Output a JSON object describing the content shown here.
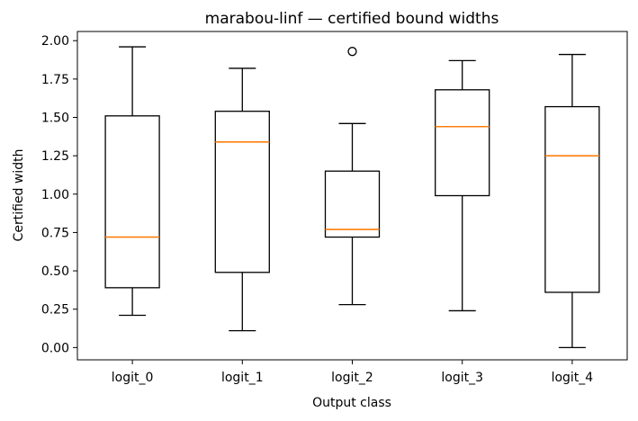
{
  "chart_data": {
    "type": "box",
    "title": "marabou-linf — certified bound widths",
    "xlabel": "Output class",
    "ylabel": "Certified width",
    "ylim": [
      -0.08,
      2.06
    ],
    "yticks": [
      0.0,
      0.25,
      0.5,
      0.75,
      1.0,
      1.25,
      1.5,
      1.75,
      2.0
    ],
    "ytick_labels": [
      "0.00",
      "0.25",
      "0.50",
      "0.75",
      "1.00",
      "1.25",
      "1.50",
      "1.75",
      "2.00"
    ],
    "grid": false,
    "colors": {
      "box": "#000000",
      "median": "#ff7f0e",
      "flier": "#000000"
    },
    "categories": [
      "logit_0",
      "logit_1",
      "logit_2",
      "logit_3",
      "logit_4"
    ],
    "boxes": [
      {
        "label": "logit_0",
        "whisker_low": 0.21,
        "q1": 0.39,
        "median": 0.72,
        "q3": 1.51,
        "whisker_high": 1.96,
        "fliers": []
      },
      {
        "label": "logit_1",
        "whisker_low": 0.11,
        "q1": 0.49,
        "median": 1.34,
        "q3": 1.54,
        "whisker_high": 1.82,
        "fliers": []
      },
      {
        "label": "logit_2",
        "whisker_low": 0.28,
        "q1": 0.72,
        "median": 0.77,
        "q3": 1.15,
        "whisker_high": 1.46,
        "fliers": [
          1.93
        ]
      },
      {
        "label": "logit_3",
        "whisker_low": 0.24,
        "q1": 0.99,
        "median": 1.44,
        "q3": 1.68,
        "whisker_high": 1.87,
        "fliers": []
      },
      {
        "label": "logit_4",
        "whisker_low": 0.0,
        "q1": 0.36,
        "median": 1.25,
        "q3": 1.57,
        "whisker_high": 1.91,
        "fliers": []
      }
    ]
  }
}
